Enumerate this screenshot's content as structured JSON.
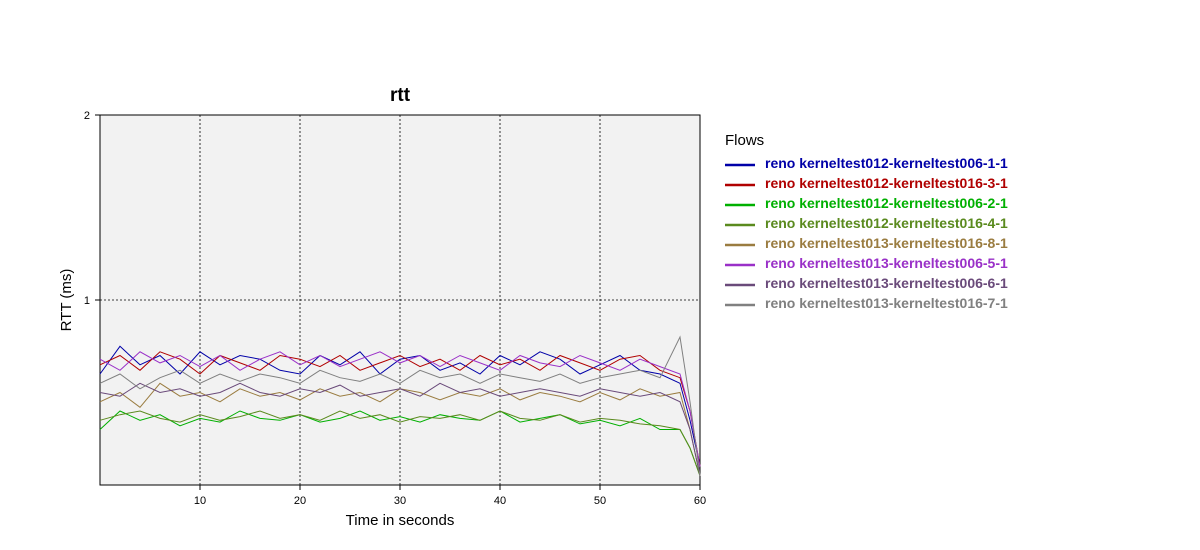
{
  "chart_data": {
    "type": "line",
    "title": "rtt",
    "xlabel": "Time in seconds",
    "ylabel": "RTT (ms)",
    "xlim": [
      0,
      60
    ],
    "ylim": [
      0,
      2
    ],
    "x_ticks": [
      10,
      20,
      30,
      40,
      50,
      60
    ],
    "y_ticks": [
      1,
      2
    ],
    "grid": true,
    "legend_title": "Flows",
    "legend_position": "right",
    "series": [
      {
        "name": "reno kerneltest012-kerneltest006-1-1",
        "color": "#0000a8",
        "x": [
          0,
          2,
          4,
          6,
          8,
          10,
          12,
          14,
          16,
          18,
          20,
          22,
          24,
          26,
          28,
          30,
          32,
          34,
          36,
          38,
          40,
          42,
          44,
          46,
          48,
          50,
          52,
          54,
          56,
          58,
          59,
          60
        ],
        "values": [
          0.6,
          0.75,
          0.65,
          0.7,
          0.6,
          0.72,
          0.65,
          0.7,
          0.68,
          0.62,
          0.6,
          0.7,
          0.65,
          0.72,
          0.6,
          0.68,
          0.7,
          0.62,
          0.66,
          0.6,
          0.7,
          0.65,
          0.72,
          0.68,
          0.6,
          0.65,
          0.7,
          0.62,
          0.6,
          0.55,
          0.35,
          0.1
        ]
      },
      {
        "name": "reno kerneltest012-kerneltest016-3-1",
        "color": "#b00000",
        "x": [
          0,
          2,
          4,
          6,
          8,
          10,
          12,
          14,
          16,
          18,
          20,
          22,
          24,
          26,
          28,
          30,
          32,
          34,
          36,
          38,
          40,
          42,
          44,
          46,
          48,
          50,
          52,
          54,
          56,
          58,
          59,
          60
        ],
        "values": [
          0.65,
          0.7,
          0.62,
          0.72,
          0.68,
          0.6,
          0.7,
          0.66,
          0.62,
          0.7,
          0.68,
          0.64,
          0.7,
          0.62,
          0.66,
          0.7,
          0.64,
          0.68,
          0.62,
          0.7,
          0.65,
          0.68,
          0.62,
          0.7,
          0.66,
          0.62,
          0.68,
          0.7,
          0.62,
          0.58,
          0.4,
          0.1
        ]
      },
      {
        "name": "reno kerneltest012-kerneltest006-2-1",
        "color": "#00b000",
        "x": [
          0,
          2,
          4,
          6,
          8,
          10,
          12,
          14,
          16,
          18,
          20,
          22,
          24,
          26,
          28,
          30,
          32,
          34,
          36,
          38,
          40,
          42,
          44,
          46,
          48,
          50,
          52,
          54,
          56,
          58,
          59,
          60
        ],
        "values": [
          0.3,
          0.4,
          0.35,
          0.38,
          0.32,
          0.36,
          0.34,
          0.4,
          0.36,
          0.35,
          0.38,
          0.34,
          0.36,
          0.4,
          0.35,
          0.37,
          0.34,
          0.38,
          0.36,
          0.35,
          0.4,
          0.34,
          0.36,
          0.38,
          0.33,
          0.35,
          0.32,
          0.36,
          0.3,
          0.3,
          0.2,
          0.05
        ]
      },
      {
        "name": "reno kerneltest012-kerneltest016-4-1",
        "color": "#5a8a1e",
        "x": [
          0,
          2,
          4,
          6,
          8,
          10,
          12,
          14,
          16,
          18,
          20,
          22,
          24,
          26,
          28,
          30,
          32,
          34,
          36,
          38,
          40,
          42,
          44,
          46,
          48,
          50,
          52,
          54,
          56,
          58,
          59,
          60
        ],
        "values": [
          0.35,
          0.38,
          0.4,
          0.36,
          0.34,
          0.38,
          0.35,
          0.37,
          0.4,
          0.36,
          0.38,
          0.35,
          0.4,
          0.36,
          0.38,
          0.34,
          0.37,
          0.36,
          0.38,
          0.35,
          0.4,
          0.36,
          0.35,
          0.38,
          0.34,
          0.36,
          0.35,
          0.33,
          0.32,
          0.3,
          0.2,
          0.05
        ]
      },
      {
        "name": "reno kerneltest013-kerneltest016-8-1",
        "color": "#9a7c40",
        "x": [
          0,
          2,
          4,
          6,
          8,
          10,
          12,
          14,
          16,
          18,
          20,
          22,
          24,
          26,
          28,
          30,
          32,
          34,
          36,
          38,
          40,
          42,
          44,
          46,
          48,
          50,
          52,
          54,
          56,
          58,
          59,
          60
        ],
        "values": [
          0.45,
          0.5,
          0.42,
          0.55,
          0.48,
          0.5,
          0.45,
          0.52,
          0.48,
          0.5,
          0.46,
          0.52,
          0.48,
          0.5,
          0.45,
          0.52,
          0.5,
          0.46,
          0.5,
          0.48,
          0.52,
          0.46,
          0.5,
          0.48,
          0.45,
          0.5,
          0.46,
          0.52,
          0.48,
          0.5,
          0.3,
          0.05
        ]
      },
      {
        "name": "reno kerneltest013-kerneltest006-5-1",
        "color": "#9a30c8",
        "x": [
          0,
          2,
          4,
          6,
          8,
          10,
          12,
          14,
          16,
          18,
          20,
          22,
          24,
          26,
          28,
          30,
          32,
          34,
          36,
          38,
          40,
          42,
          44,
          46,
          48,
          50,
          52,
          54,
          56,
          58,
          59,
          60
        ],
        "values": [
          0.68,
          0.62,
          0.72,
          0.66,
          0.7,
          0.64,
          0.7,
          0.62,
          0.68,
          0.72,
          0.65,
          0.7,
          0.64,
          0.68,
          0.72,
          0.66,
          0.7,
          0.64,
          0.7,
          0.66,
          0.62,
          0.7,
          0.66,
          0.64,
          0.7,
          0.66,
          0.62,
          0.68,
          0.64,
          0.6,
          0.4,
          0.1
        ]
      },
      {
        "name": "reno kerneltest013-kerneltest006-6-1",
        "color": "#6a4a7a",
        "x": [
          0,
          2,
          4,
          6,
          8,
          10,
          12,
          14,
          16,
          18,
          20,
          22,
          24,
          26,
          28,
          30,
          32,
          34,
          36,
          38,
          40,
          42,
          44,
          46,
          48,
          50,
          52,
          54,
          56,
          58,
          59,
          60
        ],
        "values": [
          0.5,
          0.48,
          0.55,
          0.5,
          0.52,
          0.48,
          0.5,
          0.55,
          0.5,
          0.48,
          0.52,
          0.5,
          0.54,
          0.48,
          0.5,
          0.52,
          0.48,
          0.55,
          0.5,
          0.52,
          0.48,
          0.5,
          0.52,
          0.5,
          0.48,
          0.52,
          0.5,
          0.48,
          0.5,
          0.45,
          0.3,
          0.05
        ]
      },
      {
        "name": "reno kerneltest013-kerneltest016-7-1",
        "color": "#808080",
        "x": [
          0,
          2,
          4,
          6,
          8,
          10,
          12,
          14,
          16,
          18,
          20,
          22,
          24,
          26,
          28,
          30,
          32,
          34,
          36,
          38,
          40,
          42,
          44,
          46,
          48,
          50,
          52,
          54,
          56,
          58,
          59,
          60
        ],
        "values": [
          0.55,
          0.6,
          0.52,
          0.58,
          0.62,
          0.55,
          0.6,
          0.56,
          0.6,
          0.58,
          0.55,
          0.62,
          0.58,
          0.56,
          0.6,
          0.55,
          0.62,
          0.58,
          0.6,
          0.55,
          0.6,
          0.58,
          0.56,
          0.6,
          0.55,
          0.58,
          0.6,
          0.62,
          0.58,
          0.8,
          0.45,
          0.05
        ]
      }
    ]
  }
}
